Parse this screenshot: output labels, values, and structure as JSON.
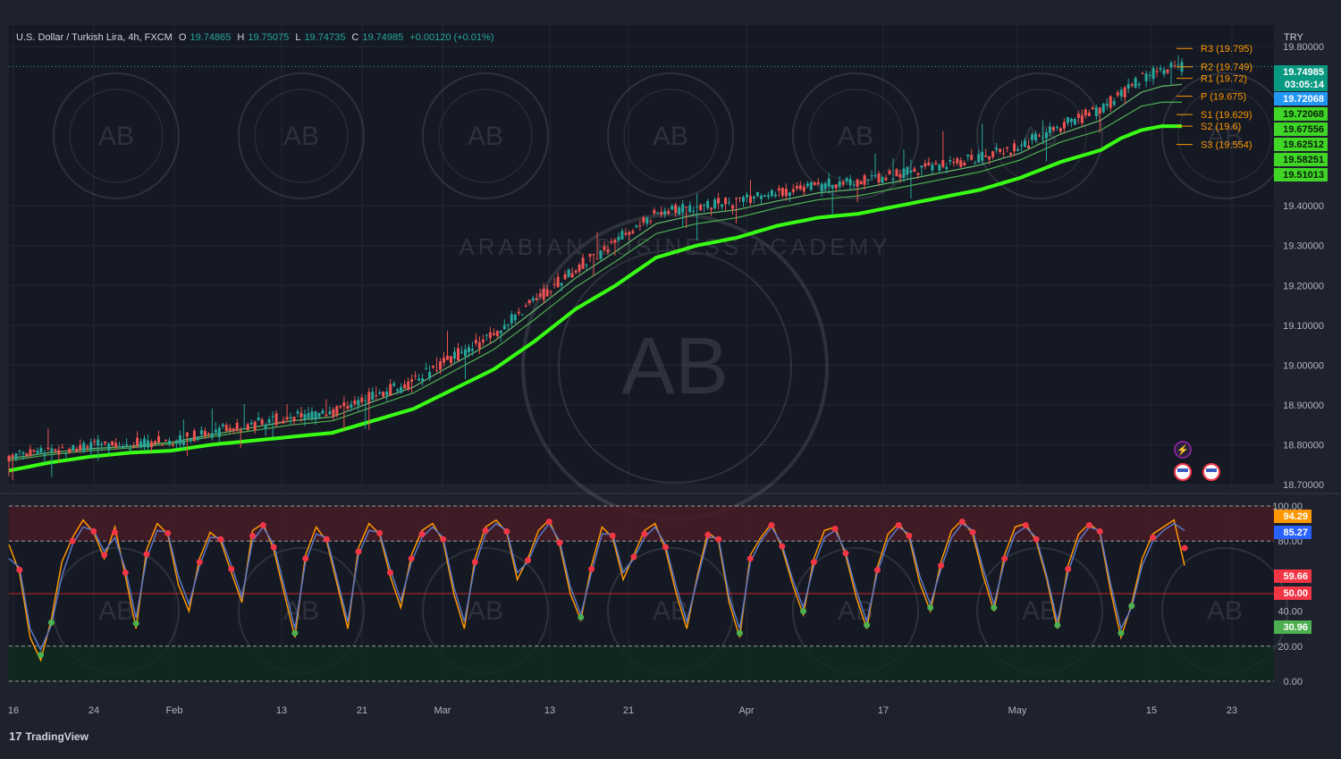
{
  "header": {
    "symbol": "U.S. Dollar / Turkish Lira, 4h, FXCM",
    "open_label": "O",
    "open": "19.74865",
    "high_label": "H",
    "high": "19.75075",
    "low_label": "L",
    "low": "19.74735",
    "close_label": "C",
    "close": "19.74985",
    "change": "+0.00120 (+0.01%)"
  },
  "currency": "TRY",
  "brand": "TradingView",
  "colors": {
    "background": "#1e222d",
    "up": "#26a69a",
    "down": "#ef5350",
    "ema_main": "#39ff14",
    "ema_thin": "#4caf50",
    "stoch_k": "#5b78c7",
    "stoch_d": "#ff9800",
    "overbought_zone": "#4a1c25",
    "oversold_zone": "#0f2a1e"
  },
  "watermark": "ARABIAN BUSINESS ACADEMY",
  "watermark_mark": "AB",
  "chart_data": [
    {
      "type": "candlestick",
      "title": "U.S. Dollar / Turkish Lira, 4h, FXCM",
      "ylim": [
        18.7,
        19.8
      ],
      "y_ticks": [
        "19.80000",
        "19.40000",
        "19.30000",
        "19.20000",
        "19.10000",
        "19.00000",
        "18.90000",
        "18.80000",
        "18.70000"
      ],
      "x_ticks": [
        "16",
        "24",
        "Feb",
        "13",
        "21",
        "Mar",
        "13",
        "21",
        "Apr",
        "17",
        "May",
        "15",
        "23"
      ],
      "close_path": {
        "x": [
          0,
          4,
          8,
          12,
          16,
          20,
          24,
          28,
          32,
          36,
          40,
          44,
          48,
          52,
          56,
          60,
          64,
          68,
          72,
          76,
          80,
          84,
          88,
          92,
          96,
          100,
          104,
          108,
          110,
          112,
          114,
          116
        ],
        "y": [
          18.77,
          18.785,
          18.795,
          18.8,
          18.81,
          18.83,
          18.85,
          18.87,
          18.88,
          18.92,
          18.96,
          19.02,
          19.08,
          19.16,
          19.24,
          19.31,
          19.38,
          19.4,
          19.41,
          19.43,
          19.45,
          19.46,
          19.48,
          19.5,
          19.52,
          19.55,
          19.6,
          19.64,
          19.68,
          19.72,
          19.74,
          19.75
        ]
      },
      "ema_series": [
        {
          "name": "",
          "offset": [
            0.035,
            0.03,
            0.025,
            0.02,
            0.025,
            0.03,
            0.04,
            0.05,
            0.05,
            0.06,
            0.07,
            0.08,
            0.09,
            0.1,
            0.1,
            0.11,
            0.11,
            0.1,
            0.09,
            0.08,
            0.08,
            0.08,
            0.08,
            0.08,
            0.08,
            0.08,
            0.09,
            0.1,
            0.11,
            0.13,
            0.14,
            0.15
          ]
        },
        {
          "name": "",
          "offset": [
            0.01,
            0.01,
            0.01,
            0.008,
            0.008,
            0.01,
            0.015,
            0.02,
            0.02,
            0.025,
            0.03,
            0.035,
            0.04,
            0.045,
            0.045,
            0.05,
            0.05,
            0.045,
            0.04,
            0.035,
            0.035,
            0.035,
            0.035,
            0.035,
            0.035,
            0.035,
            0.04,
            0.05,
            0.06,
            0.07,
            0.08,
            0.09
          ]
        },
        {
          "name": "",
          "offset": [
            0.005,
            0.005,
            0.005,
            0.004,
            0.004,
            0.005,
            0.007,
            0.01,
            0.01,
            0.012,
            0.015,
            0.017,
            0.02,
            0.022,
            0.022,
            0.025,
            0.025,
            0.022,
            0.02,
            0.018,
            0.018,
            0.018,
            0.018,
            0.018,
            0.018,
            0.018,
            0.02,
            0.025,
            0.03,
            0.035,
            0.04,
            0.045
          ]
        }
      ],
      "pivots": [
        {
          "label": "R3 (19.795)",
          "value": 19.795
        },
        {
          "label": "R2 (19.749)",
          "value": 19.749
        },
        {
          "label": "R1 (19.72)",
          "value": 19.72
        },
        {
          "label": "P (19.675)",
          "value": 19.675
        },
        {
          "label": "S1 (19.629)",
          "value": 19.629
        },
        {
          "label": "S2 (19.6)",
          "value": 19.6
        },
        {
          "label": "S3 (19.554)",
          "value": 19.554
        }
      ],
      "price_tags": [
        {
          "text": "19.74985",
          "color": "#089981"
        },
        {
          "text": "03:05:14",
          "color": "#089981"
        },
        {
          "text": "19.72068",
          "color": "#2196f3"
        },
        {
          "text": "19.72068",
          "color": "#3fd626"
        },
        {
          "text": "19.67556",
          "color": "#3fd626"
        },
        {
          "text": "19.62512",
          "color": "#3fd626"
        },
        {
          "text": "19.58251",
          "color": "#3fd626"
        },
        {
          "text": "19.51013",
          "color": "#3fd626"
        }
      ]
    },
    {
      "type": "line",
      "ylim": [
        0,
        100
      ],
      "y_ticks": [
        "100.00",
        "80.00",
        "40.00",
        "20.00",
        "0.00"
      ],
      "levels": [
        80,
        50,
        20
      ],
      "tags": [
        {
          "text": "94.29",
          "color": "#ff9800"
        },
        {
          "text": "85.27",
          "color": "#2962ff"
        },
        {
          "text": "59.66",
          "color": "#f23645"
        },
        {
          "text": "50.00",
          "color": "#f23645"
        },
        {
          "text": "30.96",
          "color": "#4caf50"
        }
      ],
      "series": [
        {
          "name": "",
          "values": [
            78,
            62,
            25,
            12,
            35,
            68,
            82,
            92,
            85,
            70,
            88,
            60,
            30,
            75,
            90,
            84,
            55,
            40,
            70,
            85,
            80,
            62,
            45,
            86,
            90,
            75,
            50,
            25,
            72,
            88,
            80,
            55,
            30,
            76,
            90,
            84,
            60,
            42,
            72,
            86,
            90,
            80,
            50,
            30,
            70,
            88,
            92,
            85,
            58,
            70,
            86,
            92,
            78,
            50,
            35,
            66,
            88,
            82,
            58,
            72,
            86,
            90,
            75,
            50,
            30,
            60,
            85,
            80,
            45,
            25,
            72,
            82,
            90,
            76,
            55,
            38,
            70,
            86,
            88,
            72,
            48,
            30,
            65,
            84,
            90,
            82,
            56,
            40,
            68,
            86,
            92,
            84,
            60,
            40,
            72,
            88,
            90,
            80,
            58,
            30,
            66,
            84,
            90,
            85,
            52,
            25,
            44,
            70,
            84,
            88,
            92,
            66
          ]
        },
        {
          "name": "",
          "values": [
            70,
            65,
            30,
            18,
            32,
            60,
            78,
            88,
            86,
            74,
            82,
            64,
            36,
            70,
            86,
            85,
            60,
            44,
            66,
            82,
            82,
            66,
            48,
            80,
            88,
            78,
            54,
            30,
            68,
            84,
            82,
            58,
            34,
            72,
            86,
            85,
            64,
            46,
            68,
            82,
            88,
            82,
            54,
            34,
            66,
            84,
            90,
            86,
            62,
            68,
            82,
            90,
            80,
            54,
            38,
            62,
            84,
            84,
            62,
            70,
            82,
            88,
            78,
            54,
            34,
            58,
            82,
            82,
            48,
            30,
            68,
            80,
            88,
            78,
            58,
            42,
            66,
            82,
            86,
            74,
            52,
            34,
            62,
            80,
            88,
            84,
            60,
            44,
            64,
            82,
            90,
            86,
            64,
            44,
            68,
            84,
            88,
            82,
            60,
            34,
            62,
            80,
            88,
            86,
            56,
            30,
            42,
            66,
            80,
            86,
            90,
            86
          ]
        }
      ]
    }
  ]
}
